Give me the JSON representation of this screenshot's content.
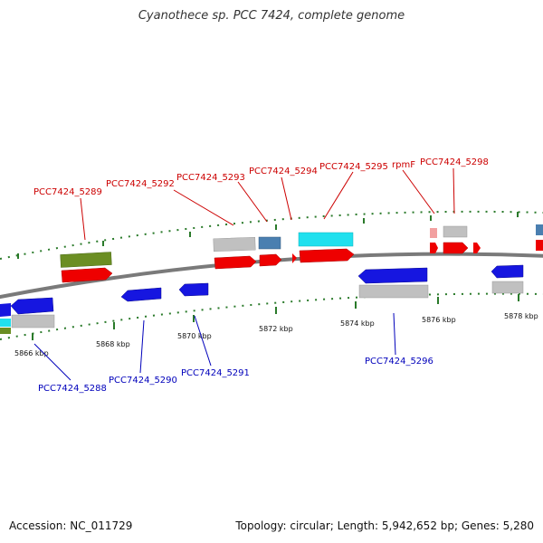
{
  "title": "Cyanothece sp. PCC 7424, complete genome",
  "accession": "Accession: NC_011729",
  "summary": "Topology: circular; Length: 5,942,652 bp; Genes: 5,280",
  "colors": {
    "forward_label": "#cc0000",
    "reverse_label": "#0000bb",
    "backbone": "#7a7a7a",
    "tick": "#2a7a2a",
    "red": "#ee0000",
    "blue": "#1616e0",
    "gray": "#c0c0c0",
    "cyan": "#20e0ee",
    "steelblue": "#4a7fb0",
    "olive": "#6b8e23",
    "pink": "#f2a0a0"
  },
  "axis_ticks": [
    "5866 kbp",
    "5868 kbp",
    "5870 kbp",
    "5872 kbp",
    "5874 kbp",
    "5876 kbp",
    "5878 kbp"
  ],
  "forward_genes": [
    "PCC7424_5289",
    "PCC7424_5292",
    "PCC7424_5293",
    "PCC7424_5294",
    "PCC7424_5295",
    "rpmF",
    "PCC7424_5298"
  ],
  "reverse_genes": [
    "PCC7424_5288",
    "PCC7424_5290",
    "PCC7424_5291",
    "PCC7424_5296"
  ]
}
